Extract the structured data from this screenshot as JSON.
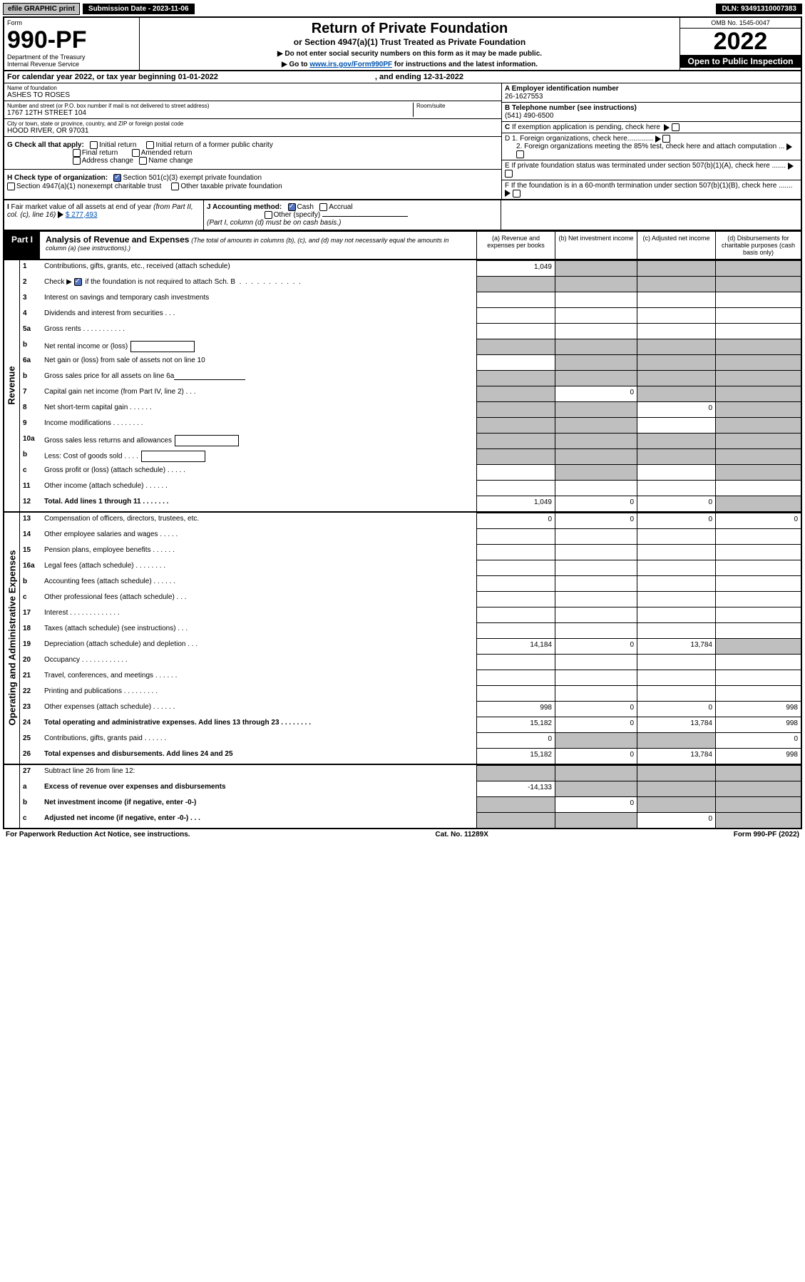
{
  "topbar": {
    "efile": "efile GRAPHIC print",
    "subdate": "Submission Date - 2023-11-06",
    "dln": "DLN: 93491310007383"
  },
  "hdr": {
    "form_word": "Form",
    "form_no": "990-PF",
    "dept": "Department of the Treasury",
    "irs": "Internal Revenue Service",
    "title": "Return of Private Foundation",
    "subtitle": "or Section 4947(a)(1) Trust Treated as Private Foundation",
    "d1": "▶ Do not enter social security numbers on this form as it may be made public.",
    "d2_pre": "▶ Go to ",
    "d2_link": "www.irs.gov/Form990PF",
    "d2_post": " for instructions and the latest information.",
    "omb": "OMB No. 1545-0047",
    "year": "2022",
    "open": "Open to Public Inspection"
  },
  "cal": {
    "lead": "For calendar year 2022, or tax year beginning 01-01-2022",
    "end": ", and ending 12-31-2022"
  },
  "id": {
    "name_lbl": "Name of foundation",
    "name_val": "ASHES TO ROSES",
    "addr_lbl": "Number and street (or P.O. box number if mail is not delivered to street address)",
    "addr_val": "1767 12TH STREET 104",
    "room_lbl": "Room/suite",
    "city_lbl": "City or town, state or province, country, and ZIP or foreign postal code",
    "city_val": "HOOD RIVER, OR  97031",
    "a_lbl": "A Employer identification number",
    "a_val": "26-1627553",
    "b_lbl": "B Telephone number (see instructions)",
    "b_val": "(541) 490-6500",
    "c_lbl": "C If exemption application is pending, check here",
    "d1": "D 1. Foreign organizations, check here.............",
    "d2": "2. Foreign organizations meeting the 85% test, check here and attach computation ...",
    "e": "E If private foundation status was terminated under section 507(b)(1)(A), check here .......",
    "f": "F If the foundation is in a 60-month termination under section 507(b)(1)(B), check here ......."
  },
  "g": {
    "lead": "G Check all that apply:",
    "o1": "Initial return",
    "o2": "Initial return of a former public charity",
    "o3": "Final return",
    "o4": "Amended return",
    "o5": "Address change",
    "o6": "Name change"
  },
  "h": {
    "lead": "H Check type of organization:",
    "o1": "Section 501(c)(3) exempt private foundation",
    "o2": "Section 4947(a)(1) nonexempt charitable trust",
    "o3": "Other taxable private foundation"
  },
  "i": {
    "lead": "I Fair market value of all assets at end of year (from Part II, col. (c), line 16) ▶",
    "val": "$  277,493"
  },
  "j": {
    "lead": "J Accounting method:",
    "cash": "Cash",
    "accrual": "Accrual",
    "other": "Other (specify)",
    "note": "(Part I, column (d) must be on cash basis.)"
  },
  "part1": {
    "tag": "Part I",
    "t": "Analysis of Revenue and Expenses",
    "s": "(The total of amounts in columns (b), (c), and (d) may not necessarily equal the amounts in column (a) (see instructions).)",
    "ca": "(a) Revenue and expenses per books",
    "cb": "(b) Net investment income",
    "cc": "(c) Adjusted net income",
    "cd": "(d) Disbursements for charitable purposes (cash basis only)"
  },
  "side": {
    "rev": "Revenue",
    "exp": "Operating and Administrative Expenses"
  },
  "rows": {
    "r1": {
      "n": "1",
      "d": "Contributions, gifts, grants, etc., received (attach schedule)",
      "a": "1,049",
      "greyBCD": true
    },
    "r2": {
      "n": "2",
      "d_pre": "Check ▶ ",
      "d_post": " if the foundation is not required to attach Sch. B",
      "chk": true,
      "dots": true,
      "allgrey": true
    },
    "r3": {
      "n": "3",
      "d": "Interest on savings and temporary cash investments"
    },
    "r4": {
      "n": "4",
      "d": "Dividends and interest from securities   .   .   ."
    },
    "r5a": {
      "n": "5a",
      "d": "Gross rents   .   .   .   .   .   .   .   .   .   .   ."
    },
    "r5b": {
      "n": "b",
      "d": "Net rental income or (loss)",
      "box": true,
      "allgrey": true
    },
    "r6a": {
      "n": "6a",
      "d": "Net gain or (loss) from sale of assets not on line 10",
      "greyBCD": true
    },
    "r6b": {
      "n": "b",
      "d": "Gross sales price for all assets on line 6a",
      "line": true,
      "allgrey": true
    },
    "r7": {
      "n": "7",
      "d": "Capital gain net income (from Part IV, line 2)   .   .   .",
      "greyA": true,
      "b": "0",
      "greyCD": true
    },
    "r8": {
      "n": "8",
      "d": "Net short-term capital gain   .   .   .   .   .   .",
      "greyAB": true,
      "c": "0",
      "greyD": true
    },
    "r9": {
      "n": "9",
      "d": "Income modifications   .   .   .   .   .   .   .   .",
      "greyAB": true,
      "greyD": true
    },
    "r10a": {
      "n": "10a",
      "d": "Gross sales less returns and allowances",
      "box": true,
      "allgrey": true
    },
    "r10b": {
      "n": "b",
      "d": "Less: Cost of goods sold   .   .   .   .",
      "box": true,
      "allgrey": true
    },
    "r10c": {
      "n": "c",
      "d": "Gross profit or (loss) (attach schedule)   .   .   .   .   .",
      "greyB": true,
      "greyD": true
    },
    "r11": {
      "n": "11",
      "d": "Other income (attach schedule)   .   .   .   .   .   ."
    },
    "r12": {
      "n": "12",
      "d": "Total. Add lines 1 through 11   .   .   .   .   .   .   .",
      "bold": true,
      "a": "1,049",
      "b": "0",
      "c": "0",
      "greyD": true
    },
    "r13": {
      "n": "13",
      "d": "Compensation of officers, directors, trustees, etc.",
      "a": "0",
      "b": "0",
      "c": "0",
      "dd": "0"
    },
    "r14": {
      "n": "14",
      "d": "Other employee salaries and wages   .   .   .   .   ."
    },
    "r15": {
      "n": "15",
      "d": "Pension plans, employee benefits   .   .   .   .   .   ."
    },
    "r16a": {
      "n": "16a",
      "d": "Legal fees (attach schedule)   .   .   .   .   .   .   .   ."
    },
    "r16b": {
      "n": "b",
      "d": "Accounting fees (attach schedule)   .   .   .   .   .   ."
    },
    "r16c": {
      "n": "c",
      "d": "Other professional fees (attach schedule)   .   .   ."
    },
    "r17": {
      "n": "17",
      "d": "Interest   .   .   .   .   .   .   .   .   .   .   .   .   ."
    },
    "r18": {
      "n": "18",
      "d": "Taxes (attach schedule) (see instructions)   .   .   ."
    },
    "r19": {
      "n": "19",
      "d": "Depreciation (attach schedule) and depletion   .   .   .",
      "a": "14,184",
      "b": "0",
      "c": "13,784",
      "greyD": true
    },
    "r20": {
      "n": "20",
      "d": "Occupancy   .   .   .   .   .   .   .   .   .   .   .   ."
    },
    "r21": {
      "n": "21",
      "d": "Travel, conferences, and meetings   .   .   .   .   .   ."
    },
    "r22": {
      "n": "22",
      "d": "Printing and publications   .   .   .   .   .   .   .   .   ."
    },
    "r23": {
      "n": "23",
      "d": "Other expenses (attach schedule)   .   .   .   .   .   .",
      "a": "998",
      "b": "0",
      "c": "0",
      "dd": "998"
    },
    "r24": {
      "n": "24",
      "d": "Total operating and administrative expenses. Add lines 13 through 23   .   .   .   .   .   .   .   .",
      "bold": true,
      "a": "15,182",
      "b": "0",
      "c": "13,784",
      "dd": "998"
    },
    "r25": {
      "n": "25",
      "d": "Contributions, gifts, grants paid   .   .   .   .   .   .",
      "a": "0",
      "greyBC": true,
      "dd": "0"
    },
    "r26": {
      "n": "26",
      "d": "Total expenses and disbursements. Add lines 24 and 25",
      "bold": true,
      "a": "15,182",
      "b": "0",
      "c": "13,784",
      "dd": "998"
    },
    "r27": {
      "n": "27",
      "d": "Subtract line 26 from line 12:",
      "allgrey": true
    },
    "r27a": {
      "n": "a",
      "d": "Excess of revenue over expenses and disbursements",
      "bold": true,
      "a": "-14,133",
      "greyBCD": true
    },
    "r27b": {
      "n": "b",
      "d": "Net investment income (if negative, enter -0-)",
      "bold": true,
      "greyA": true,
      "b": "0",
      "greyCD": true
    },
    "r27c": {
      "n": "c",
      "d": "Adjusted net income (if negative, enter -0-)   .   .   .",
      "bold": true,
      "greyAB": true,
      "c": "0",
      "greyD": true
    }
  },
  "footer": {
    "left": "For Paperwork Reduction Act Notice, see instructions.",
    "mid": "Cat. No. 11289X",
    "right": "Form 990-PF (2022)"
  }
}
